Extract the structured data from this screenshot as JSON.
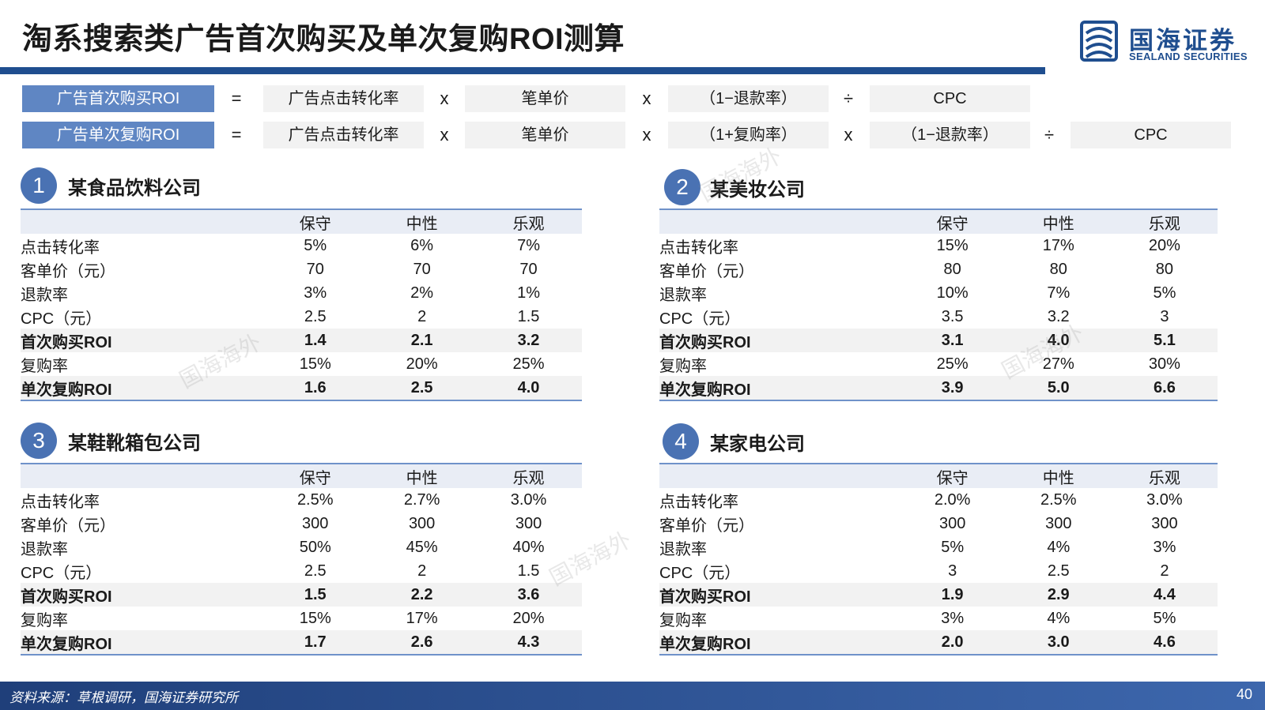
{
  "title": "淘系搜索类广告首次购买及单次复购ROI测算",
  "logo": {
    "cn": "国海证券",
    "en": "SEALAND SECURITIES"
  },
  "formulas": [
    {
      "label": "广告首次购买ROI",
      "terms": [
        "=",
        "广告点击转化率",
        "x",
        "笔单价",
        "x",
        "（1−退款率）",
        "÷",
        "CPC"
      ]
    },
    {
      "label": "广告单次复购ROI",
      "terms": [
        "=",
        "广告点击转化率",
        "x",
        "笔单价",
        "x",
        "（1+复购率）",
        "x",
        "（1−退款率）",
        "÷",
        "CPC"
      ]
    }
  ],
  "columns": [
    "保守",
    "中性",
    "乐观"
  ],
  "sections": [
    {
      "number": "1",
      "name": "某食品饮料公司",
      "rows": [
        {
          "label": "点击转化率",
          "values": [
            "5%",
            "6%",
            "7%"
          ]
        },
        {
          "label": "客单价（元）",
          "values": [
            "70",
            "70",
            "70"
          ]
        },
        {
          "label": "退款率",
          "values": [
            "3%",
            "2%",
            "1%"
          ]
        },
        {
          "label": "CPC（元）",
          "values": [
            "2.5",
            "2",
            "1.5"
          ]
        },
        {
          "label": "首次购买ROI",
          "values": [
            "1.4",
            "2.1",
            "3.2"
          ]
        },
        {
          "label": "复购率",
          "values": [
            "15%",
            "20%",
            "25%"
          ]
        },
        {
          "label": "单次复购ROI",
          "values": [
            "1.6",
            "2.5",
            "4.0"
          ]
        }
      ]
    },
    {
      "number": "2",
      "name": "某美妆公司",
      "rows": [
        {
          "label": "点击转化率",
          "values": [
            "15%",
            "17%",
            "20%"
          ]
        },
        {
          "label": "客单价（元）",
          "values": [
            "80",
            "80",
            "80"
          ]
        },
        {
          "label": "退款率",
          "values": [
            "10%",
            "7%",
            "5%"
          ]
        },
        {
          "label": "CPC（元）",
          "values": [
            "3.5",
            "3.2",
            "3"
          ]
        },
        {
          "label": "首次购买ROI",
          "values": [
            "3.1",
            "4.0",
            "5.1"
          ]
        },
        {
          "label": "复购率",
          "values": [
            "25%",
            "27%",
            "30%"
          ]
        },
        {
          "label": "单次复购ROI",
          "values": [
            "3.9",
            "5.0",
            "6.6"
          ]
        }
      ]
    },
    {
      "number": "3",
      "name": "某鞋靴箱包公司",
      "rows": [
        {
          "label": "点击转化率",
          "values": [
            "2.5%",
            "2.7%",
            "3.0%"
          ]
        },
        {
          "label": "客单价（元）",
          "values": [
            "300",
            "300",
            "300"
          ]
        },
        {
          "label": "退款率",
          "values": [
            "50%",
            "45%",
            "40%"
          ]
        },
        {
          "label": "CPC（元）",
          "values": [
            "2.5",
            "2",
            "1.5"
          ]
        },
        {
          "label": "首次购买ROI",
          "values": [
            "1.5",
            "2.2",
            "3.6"
          ]
        },
        {
          "label": "复购率",
          "values": [
            "15%",
            "17%",
            "20%"
          ]
        },
        {
          "label": "单次复购ROI",
          "values": [
            "1.7",
            "2.6",
            "4.3"
          ]
        }
      ]
    },
    {
      "number": "4",
      "name": "某家电公司",
      "rows": [
        {
          "label": "点击转化率",
          "values": [
            "2.0%",
            "2.5%",
            "3.0%"
          ]
        },
        {
          "label": "客单价（元）",
          "values": [
            "300",
            "300",
            "300"
          ]
        },
        {
          "label": "退款率",
          "values": [
            "5%",
            "4%",
            "3%"
          ]
        },
        {
          "label": "CPC（元）",
          "values": [
            "3",
            "2.5",
            "2"
          ]
        },
        {
          "label": "首次购买ROI",
          "values": [
            "1.9",
            "2.9",
            "4.4"
          ]
        },
        {
          "label": "复购率",
          "values": [
            "3%",
            "4%",
            "5%"
          ]
        },
        {
          "label": "单次复购ROI",
          "values": [
            "2.0",
            "3.0",
            "4.6"
          ]
        }
      ]
    }
  ],
  "watermark": "国海海外",
  "footer": {
    "source": "资料来源：草根调研，国海证券研究所",
    "page": "40"
  },
  "colors": {
    "brand_blue": "#1f4e8f",
    "header_blue": "#5f86c3",
    "badge_blue": "#4a72b3"
  }
}
